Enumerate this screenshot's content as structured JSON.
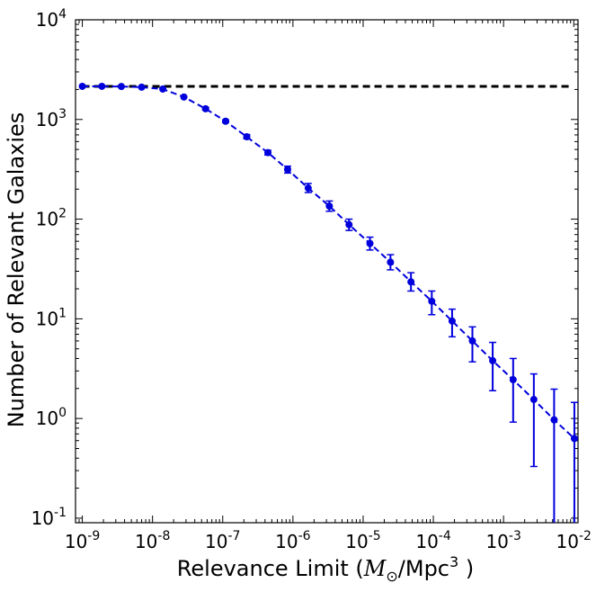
{
  "chart_data": {
    "type": "scatter",
    "title": "",
    "xlabel": {
      "prefix": "Relevance Limit (",
      "math_symbol": "M",
      "math_subscript": "⊙",
      "unit": "/Mpc",
      "unit_superscript": "3",
      "suffix": " )"
    },
    "ylabel": "Number of Relevant Galaxies",
    "xscale": "log",
    "yscale": "log",
    "xlim": [
      8e-10,
      0.0115
    ],
    "ylim": [
      0.09,
      10000
    ],
    "x_ticks": [
      {
        "value": 1e-09,
        "base": "10",
        "exp": "-9"
      },
      {
        "value": 1e-08,
        "base": "10",
        "exp": "-8"
      },
      {
        "value": 1e-07,
        "base": "10",
        "exp": "-7"
      },
      {
        "value": 1e-06,
        "base": "10",
        "exp": "-6"
      },
      {
        "value": 1e-05,
        "base": "10",
        "exp": "-5"
      },
      {
        "value": 0.0001,
        "base": "10",
        "exp": "-4"
      },
      {
        "value": 0.001,
        "base": "10",
        "exp": "-3"
      },
      {
        "value": 0.01,
        "base": "10",
        "exp": "-2"
      }
    ],
    "y_ticks": [
      {
        "value": 0.1,
        "base": "10",
        "exp": "-1"
      },
      {
        "value": 1,
        "base": "10",
        "exp": "0"
      },
      {
        "value": 10,
        "base": "10",
        "exp": "1"
      },
      {
        "value": 100,
        "base": "10",
        "exp": "2"
      },
      {
        "value": 1000,
        "base": "10",
        "exp": "3"
      },
      {
        "value": 10000,
        "base": "10",
        "exp": "4"
      }
    ],
    "grid": false,
    "reference_line": {
      "y": 2150,
      "style": "dashed",
      "color": "#000000"
    },
    "series": [
      {
        "color": "#0000dd",
        "line_style": "dashed",
        "marker": "circle",
        "points": [
          {
            "x": 1e-09,
            "y": 2150,
            "yerr_low": 2150,
            "yerr_high": 2150
          },
          {
            "x": 1.9e-09,
            "y": 2150,
            "yerr_low": 2150,
            "yerr_high": 2150
          },
          {
            "x": 3.6e-09,
            "y": 2140,
            "yerr_low": 2140,
            "yerr_high": 2140
          },
          {
            "x": 7e-09,
            "y": 2110,
            "yerr_low": 2110,
            "yerr_high": 2110
          },
          {
            "x": 1.4e-08,
            "y": 2020,
            "yerr_low": 2020,
            "yerr_high": 2020
          },
          {
            "x": 2.8e-08,
            "y": 1680,
            "yerr_low": 1680,
            "yerr_high": 1680
          },
          {
            "x": 5.7e-08,
            "y": 1280,
            "yerr_low": 1250,
            "yerr_high": 1320
          },
          {
            "x": 1.1e-07,
            "y": 960,
            "yerr_low": 930,
            "yerr_high": 990
          },
          {
            "x": 2.2e-07,
            "y": 670,
            "yerr_low": 640,
            "yerr_high": 705
          },
          {
            "x": 4.4e-07,
            "y": 465,
            "yerr_low": 440,
            "yerr_high": 490
          },
          {
            "x": 8.4e-07,
            "y": 315,
            "yerr_low": 290,
            "yerr_high": 340
          },
          {
            "x": 1.65e-06,
            "y": 205,
            "yerr_low": 185,
            "yerr_high": 228
          },
          {
            "x": 3.3e-06,
            "y": 135,
            "yerr_low": 120,
            "yerr_high": 152
          },
          {
            "x": 6.3e-06,
            "y": 88,
            "yerr_low": 77,
            "yerr_high": 100
          },
          {
            "x": 1.25e-05,
            "y": 57,
            "yerr_low": 49,
            "yerr_high": 66
          },
          {
            "x": 2.45e-05,
            "y": 37,
            "yerr_low": 31,
            "yerr_high": 44
          },
          {
            "x": 4.8e-05,
            "y": 23.5,
            "yerr_low": 19,
            "yerr_high": 29
          },
          {
            "x": 9.5e-05,
            "y": 15,
            "yerr_low": 11,
            "yerr_high": 19
          },
          {
            "x": 0.000185,
            "y": 9.5,
            "yerr_low": 6.6,
            "yerr_high": 12.5
          },
          {
            "x": 0.00036,
            "y": 6.0,
            "yerr_low": 3.7,
            "yerr_high": 8.3
          },
          {
            "x": 0.0007,
            "y": 3.8,
            "yerr_low": 1.9,
            "yerr_high": 5.8
          },
          {
            "x": 0.00137,
            "y": 2.45,
            "yerr_low": 0.92,
            "yerr_high": 4.0
          },
          {
            "x": 0.0027,
            "y": 1.55,
            "yerr_low": 0.33,
            "yerr_high": 2.8
          },
          {
            "x": 0.00525,
            "y": 0.97,
            "yerr_low": 0.09,
            "yerr_high": 1.97
          },
          {
            "x": 0.0102,
            "y": 0.63,
            "yerr_low": 0.09,
            "yerr_high": 1.45
          }
        ]
      }
    ],
    "colors": {
      "series": "#0000dd",
      "reference": "#000000",
      "axes": "#000000"
    }
  }
}
